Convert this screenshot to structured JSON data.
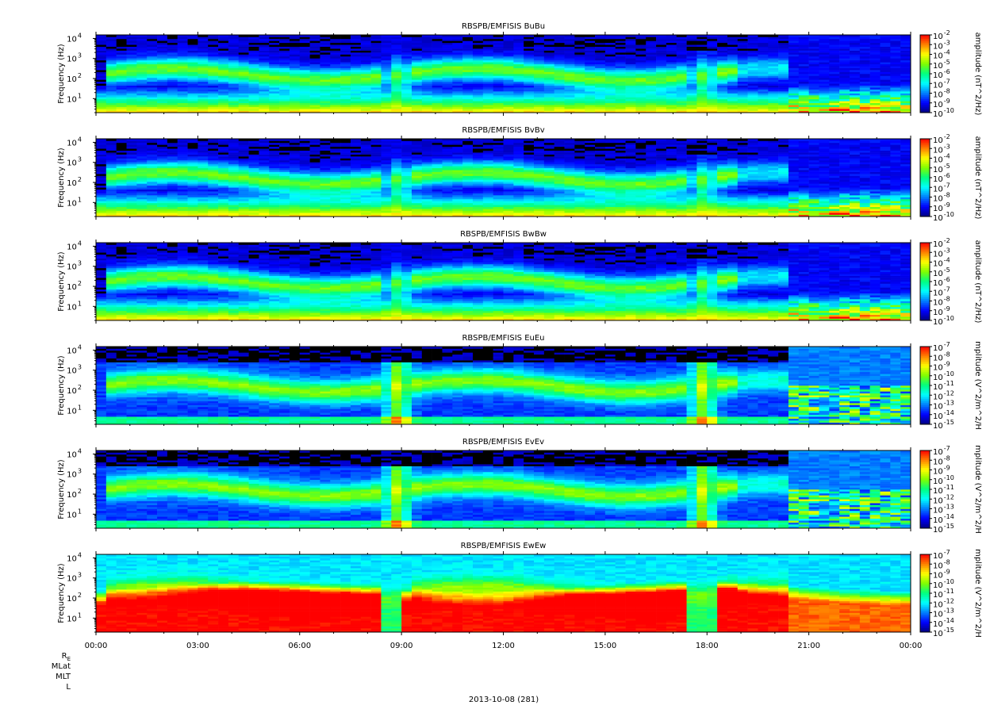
{
  "chart_data": {
    "type": "heatmap",
    "x_tick_labels": [
      "00:00",
      "03:00",
      "06:00",
      "09:00",
      "12:00",
      "15:00",
      "18:00",
      "21:00",
      "00:00"
    ],
    "xlim_hours": [
      0,
      24
    ],
    "y_scale": "log",
    "ylim_hz": [
      2,
      15000
    ],
    "y_tick_labels": [
      {
        "base": "10",
        "exp": "1",
        "value": 10
      },
      {
        "base": "10",
        "exp": "2",
        "value": 100
      },
      {
        "base": "10",
        "exp": "3",
        "value": 1000
      },
      {
        "base": "10",
        "exp": "4",
        "value": 10000
      }
    ],
    "ylabel": "Frequency (Hz)",
    "colormap": [
      "#000080",
      "#0000ff",
      "#0080ff",
      "#00ffff",
      "#00ff80",
      "#80ff00",
      "#ffff00",
      "#ff8000",
      "#ff0000"
    ],
    "panels": [
      {
        "title": "RBSPB/EMFISIS  BuBu",
        "kind": "B",
        "cb_label": "amplitude (nT^2/Hz)",
        "cb_ticks": [
          "-2",
          "-3",
          "-4",
          "-5",
          "-6",
          "-7",
          "-8",
          "-9",
          "-10"
        ]
      },
      {
        "title": "RBSPB/EMFISIS  BvBv",
        "kind": "B",
        "cb_label": "amplitude (nT^2/Hz)",
        "cb_ticks": [
          "-2",
          "-3",
          "-4",
          "-5",
          "-6",
          "-7",
          "-8",
          "-9",
          "-10"
        ]
      },
      {
        "title": "RBSPB/EMFISIS  BwBw",
        "kind": "B",
        "cb_label": "amplitude (nT^2/Hz)",
        "cb_ticks": [
          "-2",
          "-3",
          "-4",
          "-5",
          "-6",
          "-7",
          "-8",
          "-9",
          "-10"
        ]
      },
      {
        "title": "RBSPB/EMFISIS  EuEu",
        "kind": "E",
        "cb_label": "mplitude (V^2/m^2/H",
        "cb_ticks": [
          "-7",
          "-8",
          "-9",
          "-10",
          "-11",
          "-12",
          "-13",
          "-14",
          "-15"
        ]
      },
      {
        "title": "RBSPB/EMFISIS  EvEv",
        "kind": "E",
        "cb_label": "mplitude (V^2/m^2/H",
        "cb_ticks": [
          "-7",
          "-8",
          "-9",
          "-10",
          "-11",
          "-12",
          "-13",
          "-14",
          "-15"
        ]
      },
      {
        "title": "RBSPB/EMFISIS  EwEw",
        "kind": "Ew",
        "cb_label": "mplitude (V^2/m^2/H",
        "cb_ticks": [
          "-7",
          "-8",
          "-9",
          "-10",
          "-11",
          "-12",
          "-13",
          "-14",
          "-15"
        ]
      }
    ],
    "cb_tick_base": "10",
    "ephemeris_labels": [
      {
        "main": "R",
        "sub": "E"
      },
      {
        "main": "MLat",
        "sub": ""
      },
      {
        "main": "MLT",
        "sub": ""
      },
      {
        "main": "L",
        "sub": ""
      }
    ],
    "date_label": "2013-10-08 (281)"
  }
}
